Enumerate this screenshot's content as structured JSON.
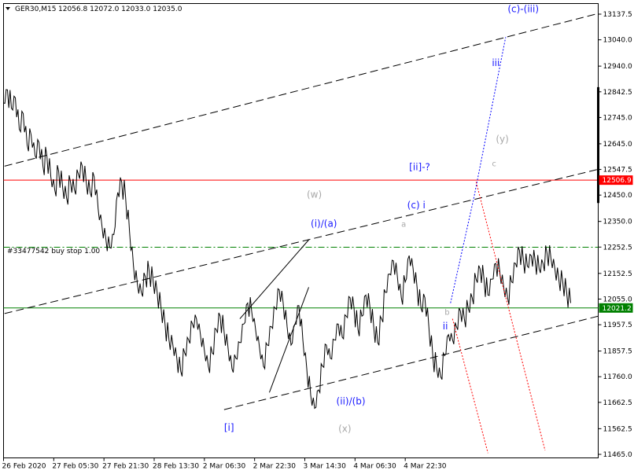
{
  "header": {
    "symbol": "GER30,M15",
    "ohlc": "12056.8 12072.0 12033.0 12035.0"
  },
  "colors": {
    "price": "#000000",
    "resistance_line": "#ff0000",
    "support_line": "#008000",
    "order_line": "#008000",
    "wave_blue": "#1a1aff",
    "wave_gray": "#a8a8a8",
    "proj_blue": "#0000ff",
    "proj_red": "#ff0000"
  },
  "order_label": "#33477542 buy stop 1.00",
  "price_tags": {
    "resistance": "12506.9",
    "current": "12021.2"
  },
  "chart_data": {
    "type": "line",
    "title": "GER30,M15",
    "ylim": [
      11450,
      13200
    ],
    "grid": false,
    "y_ticks": [
      11465,
      11562.5,
      11662.5,
      11760,
      11857.5,
      11957.5,
      12055,
      12152.5,
      12252.5,
      12350,
      12450,
      12547.5,
      12645,
      12745,
      12842.5,
      12940,
      13040,
      13137.5
    ],
    "y_tick_labels": [
      "11465.0",
      "11562.5",
      "11662.5",
      "11760.0",
      "11857.5",
      "11957.5",
      "12055.0",
      "12152.5",
      "12252.5",
      "12350.0",
      "12450.0",
      "12547.5",
      "12645.0",
      "12745.0",
      "12842.5",
      "12940.0",
      "13040.0",
      "13137.5"
    ],
    "x_tick_labels": [
      "26 Feb 2020",
      "27 Feb 05:30",
      "27 Feb 21:30",
      "28 Feb 13:30",
      "2 Mar 06:30",
      "2 Mar 22:30",
      "3 Mar 14:30",
      "4 Mar 06:30",
      "4 Mar 22:30"
    ],
    "price_path": [
      [
        0,
        12800
      ],
      [
        2,
        12850
      ],
      [
        4,
        12780
      ],
      [
        6,
        12820
      ],
      [
        8,
        12700
      ],
      [
        10,
        12760
      ],
      [
        12,
        12640
      ],
      [
        14,
        12680
      ],
      [
        16,
        12600
      ],
      [
        18,
        12650
      ],
      [
        20,
        12560
      ],
      [
        22,
        12600
      ],
      [
        24,
        12520
      ],
      [
        26,
        12470
      ],
      [
        28,
        12540
      ],
      [
        30,
        12480
      ],
      [
        32,
        12440
      ],
      [
        34,
        12500
      ],
      [
        36,
        12470
      ],
      [
        38,
        12530
      ],
      [
        40,
        12560
      ],
      [
        42,
        12500
      ],
      [
        44,
        12460
      ],
      [
        46,
        12520
      ],
      [
        48,
        12400
      ],
      [
        50,
        12330
      ],
      [
        52,
        12280
      ],
      [
        54,
        12250
      ],
      [
        56,
        12300
      ],
      [
        58,
        12460
      ],
      [
        60,
        12500
      ],
      [
        62,
        12440
      ],
      [
        64,
        12310
      ],
      [
        66,
        12180
      ],
      [
        68,
        12110
      ],
      [
        70,
        12080
      ],
      [
        72,
        12140
      ],
      [
        74,
        12160
      ],
      [
        76,
        12120
      ],
      [
        78,
        12080
      ],
      [
        80,
        12020
      ],
      [
        82,
        11960
      ],
      [
        84,
        11900
      ],
      [
        86,
        11880
      ],
      [
        88,
        11830
      ],
      [
        90,
        11780
      ],
      [
        92,
        11850
      ],
      [
        94,
        11900
      ],
      [
        96,
        11960
      ],
      [
        98,
        11980
      ],
      [
        100,
        11920
      ],
      [
        102,
        11860
      ],
      [
        104,
        11800
      ],
      [
        106,
        11850
      ],
      [
        108,
        11940
      ],
      [
        110,
        11990
      ],
      [
        112,
        11930
      ],
      [
        114,
        11870
      ],
      [
        116,
        11790
      ],
      [
        118,
        11830
      ],
      [
        120,
        11890
      ],
      [
        122,
        11960
      ],
      [
        124,
        12040
      ],
      [
        126,
        12010
      ],
      [
        128,
        11940
      ],
      [
        130,
        11870
      ],
      [
        132,
        11800
      ],
      [
        134,
        11880
      ],
      [
        136,
        11950
      ],
      [
        138,
        12020
      ],
      [
        140,
        12090
      ],
      [
        142,
        12040
      ],
      [
        144,
        11950
      ],
      [
        146,
        11880
      ],
      [
        148,
        11960
      ],
      [
        150,
        12030
      ],
      [
        152,
        11900
      ],
      [
        154,
        11790
      ],
      [
        156,
        11690
      ],
      [
        158,
        11640
      ],
      [
        160,
        11710
      ],
      [
        162,
        11800
      ],
      [
        164,
        11880
      ],
      [
        166,
        11830
      ],
      [
        168,
        11900
      ],
      [
        170,
        11960
      ],
      [
        172,
        11910
      ],
      [
        174,
        11990
      ],
      [
        176,
        12060
      ],
      [
        178,
        12020
      ],
      [
        180,
        11940
      ],
      [
        182,
        11990
      ],
      [
        184,
        12070
      ],
      [
        186,
        12030
      ],
      [
        188,
        11950
      ],
      [
        190,
        11890
      ],
      [
        192,
        11980
      ],
      [
        194,
        12080
      ],
      [
        196,
        12150
      ],
      [
        198,
        12200
      ],
      [
        200,
        12140
      ],
      [
        202,
        12060
      ],
      [
        204,
        12120
      ],
      [
        206,
        12220
      ],
      [
        208,
        12170
      ],
      [
        210,
        12100
      ],
      [
        212,
        12020
      ],
      [
        214,
        12060
      ],
      [
        216,
        11950
      ],
      [
        218,
        11840
      ],
      [
        220,
        11790
      ],
      [
        222,
        11760
      ],
      [
        224,
        11840
      ],
      [
        226,
        11920
      ],
      [
        228,
        11900
      ],
      [
        230,
        11950
      ],
      [
        232,
        12010
      ],
      [
        234,
        11980
      ],
      [
        236,
        12020
      ],
      [
        238,
        12060
      ],
      [
        240,
        12130
      ],
      [
        242,
        12170
      ],
      [
        244,
        12130
      ],
      [
        246,
        12070
      ],
      [
        248,
        12130
      ],
      [
        250,
        12190
      ],
      [
        252,
        12160
      ],
      [
        254,
        12100
      ],
      [
        256,
        12060
      ],
      [
        258,
        12120
      ],
      [
        260,
        12190
      ],
      [
        262,
        12240
      ],
      [
        264,
        12200
      ],
      [
        266,
        12180
      ],
      [
        268,
        12220
      ],
      [
        270,
        12200
      ],
      [
        272,
        12170
      ],
      [
        274,
        12190
      ],
      [
        276,
        12230
      ],
      [
        278,
        12210
      ],
      [
        280,
        12170
      ],
      [
        282,
        12130
      ],
      [
        284,
        12120
      ],
      [
        286,
        12080
      ],
      [
        288,
        12040
      ]
    ],
    "channels": [
      {
        "name": "upper",
        "points": [
          [
            0.5,
            12560
          ],
          [
            302,
            13140
          ]
        ]
      },
      {
        "name": "middle",
        "points": [
          [
            0.5,
            12000
          ],
          [
            302,
            12548
          ]
        ]
      },
      {
        "name": "lower",
        "points": [
          [
            112,
            11635
          ],
          [
            302,
            11990
          ]
        ]
      }
    ],
    "wedge": [
      [
        [
          120,
          11980
        ],
        [
          155,
          12280
        ]
      ],
      [
        [
          135,
          11700
        ],
        [
          155,
          12100
        ]
      ]
    ],
    "projections": {
      "blue": [
        [
          227,
          12040
        ],
        [
          239,
          12445
        ],
        [
          255,
          13050
        ]
      ],
      "red_1": [
        [
          240,
          12500
        ],
        [
          275,
          11480
        ]
      ],
      "red_2": [
        [
          228,
          11980
        ],
        [
          246,
          11470
        ]
      ]
    },
    "horizontal_levels": [
      {
        "name": "resistance",
        "value": 12506.9
      },
      {
        "name": "buy-stop",
        "value": 12252
      },
      {
        "name": "support",
        "value": 12021.2
      }
    ],
    "annotations": [
      {
        "text": "(c)-(iii)",
        "x": 256,
        "y": 13145,
        "color": "blue"
      },
      {
        "text": "iii",
        "x": 248,
        "y": 12940,
        "color": "blue"
      },
      {
        "text": "(y)",
        "x": 250,
        "y": 12650,
        "color": "gray"
      },
      {
        "text": "c",
        "x": 248,
        "y": 12560,
        "color": "gray",
        "small": true
      },
      {
        "text": "[ii]-?",
        "x": 206,
        "y": 12545,
        "color": "blue"
      },
      {
        "text": "(w)",
        "x": 154,
        "y": 12440,
        "color": "gray"
      },
      {
        "text": "(c) i",
        "x": 205,
        "y": 12400,
        "color": "blue"
      },
      {
        "text": "(i)/(a)",
        "x": 156,
        "y": 12330,
        "color": "blue"
      },
      {
        "text": "a",
        "x": 202,
        "y": 12330,
        "color": "gray",
        "small": true
      },
      {
        "text": "b",
        "x": 224,
        "y": 11995,
        "color": "gray",
        "small": true
      },
      {
        "text": "ii",
        "x": 223,
        "y": 11940,
        "color": "blue"
      },
      {
        "text": "(ii)/(b)",
        "x": 169,
        "y": 11655,
        "color": "blue"
      },
      {
        "text": "[i]",
        "x": 112,
        "y": 11555,
        "color": "blue"
      },
      {
        "text": "(x)",
        "x": 170,
        "y": 11550,
        "color": "gray"
      }
    ]
  }
}
